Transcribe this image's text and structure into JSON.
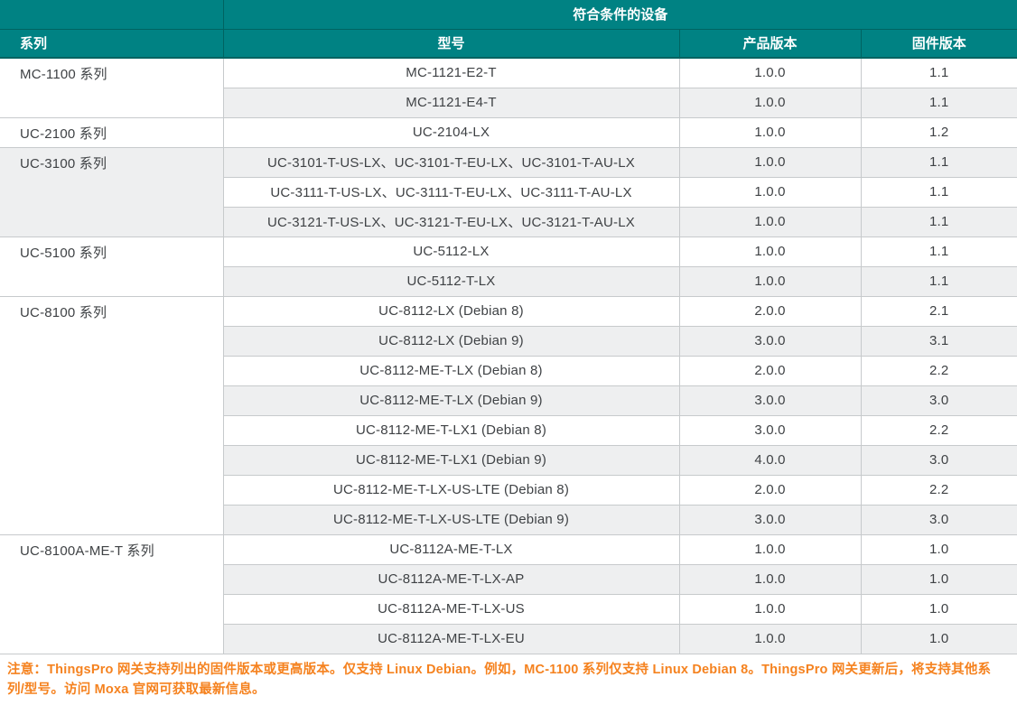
{
  "table": {
    "merged_header": "符合条件的设备",
    "columns": [
      "系列",
      "型号",
      "产品版本",
      "固件版本"
    ],
    "groups": [
      {
        "series": "MC-1100 系列",
        "rows": [
          {
            "model": "MC-1121-E2-T",
            "product_version": "1.0.0",
            "firmware_version": "1.1"
          },
          {
            "model": "MC-1121-E4-T",
            "product_version": "1.0.0",
            "firmware_version": "1.1"
          }
        ]
      },
      {
        "series": "UC-2100 系列",
        "rows": [
          {
            "model": "UC-2104-LX",
            "product_version": "1.0.0",
            "firmware_version": "1.2"
          }
        ]
      },
      {
        "series": "UC-3100 系列",
        "rows": [
          {
            "model": "UC-3101-T-US-LX、UC-3101-T-EU-LX、UC-3101-T-AU-LX",
            "product_version": "1.0.0",
            "firmware_version": "1.1"
          },
          {
            "model": "UC-3111-T-US-LX、UC-3111-T-EU-LX、UC-3111-T-AU-LX",
            "product_version": "1.0.0",
            "firmware_version": "1.1"
          },
          {
            "model": "UC-3121-T-US-LX、UC-3121-T-EU-LX、UC-3121-T-AU-LX",
            "product_version": "1.0.0",
            "firmware_version": "1.1"
          }
        ]
      },
      {
        "series": "UC-5100 系列",
        "rows": [
          {
            "model": "UC-5112-LX",
            "product_version": "1.0.0",
            "firmware_version": "1.1"
          },
          {
            "model": "UC-5112-T-LX",
            "product_version": "1.0.0",
            "firmware_version": "1.1"
          }
        ]
      },
      {
        "series": "UC-8100 系列",
        "rows": [
          {
            "model": "UC-8112-LX (Debian 8)",
            "product_version": "2.0.0",
            "firmware_version": "2.1"
          },
          {
            "model": "UC-8112-LX (Debian 9)",
            "product_version": "3.0.0",
            "firmware_version": "3.1"
          },
          {
            "model": "UC-8112-ME-T-LX (Debian 8)",
            "product_version": "2.0.0",
            "firmware_version": "2.2"
          },
          {
            "model": "UC-8112-ME-T-LX (Debian 9)",
            "product_version": "3.0.0",
            "firmware_version": "3.0"
          },
          {
            "model": "UC-8112-ME-T-LX1 (Debian 8)",
            "product_version": "3.0.0",
            "firmware_version": "2.2"
          },
          {
            "model": "UC-8112-ME-T-LX1 (Debian 9)",
            "product_version": "4.0.0",
            "firmware_version": "3.0"
          },
          {
            "model": "UC-8112-ME-T-LX-US-LTE (Debian 8)",
            "product_version": "2.0.0",
            "firmware_version": "2.2"
          },
          {
            "model": "UC-8112-ME-T-LX-US-LTE (Debian 9)",
            "product_version": "3.0.0",
            "firmware_version": "3.0"
          }
        ]
      },
      {
        "series": "UC-8100A-ME-T 系列",
        "rows": [
          {
            "model": "UC-8112A-ME-T-LX",
            "product_version": "1.0.0",
            "firmware_version": "1.0"
          },
          {
            "model": "UC-8112A-ME-T-LX-AP",
            "product_version": "1.0.0",
            "firmware_version": "1.0"
          },
          {
            "model": "UC-8112A-ME-T-LX-US",
            "product_version": "1.0.0",
            "firmware_version": "1.0"
          },
          {
            "model": "UC-8112A-ME-T-LX-EU",
            "product_version": "1.0.0",
            "firmware_version": "1.0"
          }
        ]
      }
    ]
  },
  "note": "注意：ThingsPro 网关支持列出的固件版本或更高版本。仅支持 Linux Debian。例如，MC-1100 系列仅支持 Linux Debian 8。ThingsPro 网关更新后，将支持其他系列/型号。访问 Moxa 官网可获取最新信息。",
  "colors": {
    "header_teal": "#008283",
    "header_line": "#006361",
    "header_text": "#ffffff",
    "stripe_gray": "#eeeff0",
    "border_gray": "#c7cacc",
    "text_dark": "#3f4245",
    "note_orange": "#f5821f"
  }
}
